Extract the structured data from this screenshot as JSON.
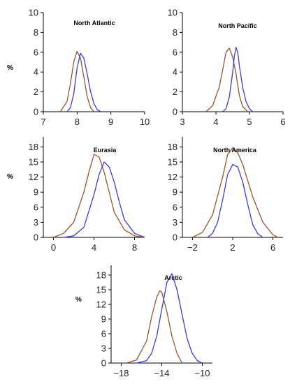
{
  "chart_data": [
    {
      "type": "line",
      "title": "North Atlantic",
      "ylabel": "%",
      "xlim": [
        7,
        10
      ],
      "ylim": [
        0,
        10
      ],
      "xticks": [
        "7",
        "8",
        "9",
        "10"
      ],
      "yticks": [
        "0",
        "2",
        "4",
        "6",
        "8",
        "10"
      ],
      "series": [
        {
          "color": "#a0522d",
          "x": [
            7.5,
            7.7,
            7.8,
            7.9,
            8.0,
            8.1,
            8.2,
            8.3,
            8.4,
            8.5
          ],
          "y": [
            0,
            1.0,
            2.8,
            5.0,
            6.1,
            5.4,
            3.5,
            1.5,
            0.4,
            0
          ]
        },
        {
          "color": "#3b3bdc",
          "x": [
            7.7,
            7.8,
            7.9,
            8.0,
            8.1,
            8.2,
            8.3,
            8.4,
            8.5,
            8.6,
            8.7
          ],
          "y": [
            0,
            0.4,
            1.8,
            4.4,
            5.9,
            5.4,
            3.8,
            2.0,
            0.8,
            0.2,
            0
          ]
        }
      ]
    },
    {
      "type": "line",
      "title": "North Pacific",
      "xlim": [
        3,
        6
      ],
      "ylim": [
        0,
        10
      ],
      "xticks": [
        "3",
        "4",
        "5",
        "6"
      ],
      "yticks": [
        "0",
        "2",
        "4",
        "6",
        "8",
        "10"
      ],
      "series": [
        {
          "color": "#a0522d",
          "x": [
            3.7,
            3.9,
            4.1,
            4.2,
            4.3,
            4.4,
            4.5,
            4.6,
            4.7,
            4.8,
            4.95
          ],
          "y": [
            0,
            0.6,
            2.5,
            4.2,
            6.0,
            6.4,
            5.5,
            3.8,
            1.6,
            0.5,
            0
          ]
        },
        {
          "color": "#3b3bdc",
          "x": [
            4.2,
            4.3,
            4.4,
            4.5,
            4.55,
            4.6,
            4.65,
            4.7,
            4.8,
            4.9,
            5.0,
            5.1
          ],
          "y": [
            0,
            0.3,
            1.5,
            4.0,
            5.6,
            6.5,
            6.0,
            4.6,
            2.4,
            1.0,
            0.3,
            0
          ]
        }
      ]
    },
    {
      "type": "line",
      "title": "Eurasia",
      "ylabel": "%",
      "xlim": [
        -1,
        9
      ],
      "ylim": [
        0,
        20
      ],
      "xticks": [
        "0",
        "4",
        "8"
      ],
      "yticks": [
        "0",
        "3",
        "6",
        "9",
        "12",
        "15",
        "18"
      ],
      "series": [
        {
          "color": "#a0522d",
          "x": [
            0,
            1,
            2,
            3,
            3.5,
            4,
            4.5,
            5,
            5.5,
            6,
            7,
            8,
            9
          ],
          "y": [
            0,
            0.8,
            3.0,
            9.0,
            13.0,
            16.5,
            16.0,
            13.0,
            9.0,
            5.0,
            1.5,
            0.3,
            0
          ]
        },
        {
          "color": "#3b3bdc",
          "x": [
            1,
            2,
            3,
            4,
            4.5,
            5,
            5.5,
            6,
            6.5,
            7,
            8,
            9
          ],
          "y": [
            0,
            0.3,
            2.0,
            8.5,
            12.5,
            15.0,
            14.0,
            11.0,
            7.0,
            3.5,
            0.8,
            0
          ]
        }
      ]
    },
    {
      "type": "line",
      "title": "North America",
      "xlim": [
        -3,
        7
      ],
      "ylim": [
        0,
        20
      ],
      "xticks": [
        "-2",
        "2",
        "6"
      ],
      "yticks": [
        "0",
        "3",
        "6",
        "9",
        "12",
        "15",
        "18"
      ],
      "series": [
        {
          "color": "#a0522d",
          "x": [
            -2,
            -1,
            0,
            1,
            1.5,
            2,
            2.5,
            3,
            4,
            5,
            6,
            6.5
          ],
          "y": [
            0,
            1.0,
            4.5,
            12.0,
            16.5,
            17.8,
            16.8,
            14.5,
            8.0,
            3.0,
            0.5,
            0
          ]
        },
        {
          "color": "#3b3bdc",
          "x": [
            -0.5,
            0,
            0.5,
            1,
            1.5,
            2,
            2.5,
            3,
            3.5,
            4,
            4.5,
            5
          ],
          "y": [
            0,
            0.8,
            3.0,
            7.5,
            12.5,
            14.5,
            14.0,
            11.0,
            6.5,
            2.5,
            0.7,
            0
          ]
        }
      ]
    },
    {
      "type": "line",
      "title": "Arctic",
      "ylabel": "%",
      "xlim": [
        -19,
        -9
      ],
      "ylim": [
        0,
        20
      ],
      "xticks": [
        "-18",
        "-14",
        "-10"
      ],
      "yticks": [
        "0",
        "3",
        "6",
        "9",
        "12",
        "15",
        "18"
      ],
      "series": [
        {
          "color": "#a0522d",
          "x": [
            -17.5,
            -16.5,
            -15.5,
            -15,
            -14.5,
            -14.2,
            -14,
            -13.5,
            -13,
            -12.5,
            -12
          ],
          "y": [
            0,
            0.6,
            4.5,
            9.5,
            13.5,
            14.8,
            14.5,
            10.5,
            5.5,
            2.0,
            0
          ]
        },
        {
          "color": "#3b3bdc",
          "x": [
            -16.5,
            -15.5,
            -15,
            -14.5,
            -14,
            -13.5,
            -13,
            -12.5,
            -12,
            -11.5,
            -11,
            -10.5,
            -10
          ],
          "y": [
            0,
            0.5,
            2.0,
            5.5,
            11.0,
            16.5,
            18.3,
            15.0,
            10.0,
            5.0,
            2.0,
            0.5,
            0
          ]
        }
      ]
    }
  ]
}
